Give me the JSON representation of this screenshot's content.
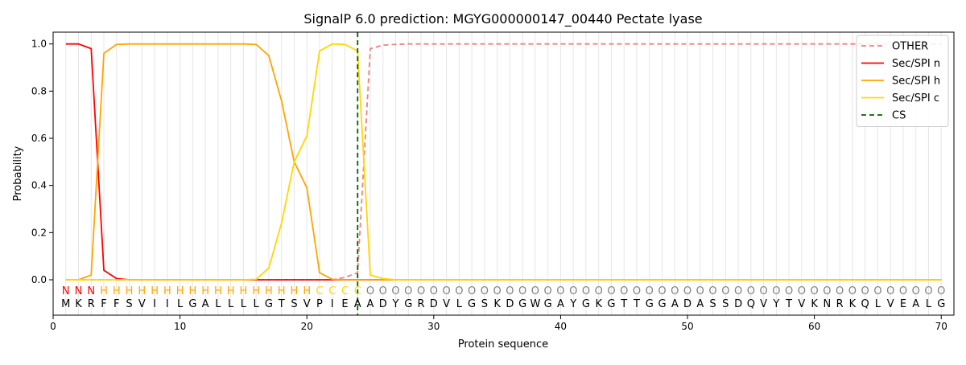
{
  "chart_data": {
    "type": "line",
    "title": "SignalP 6.0 prediction: MGYG000000147_00440 Pectate lyase",
    "xlabel": "Protein sequence",
    "ylabel": "Probability",
    "xlim": [
      0,
      71
    ],
    "ylim": [
      -0.15,
      1.05
    ],
    "x_ticks": [
      0,
      10,
      20,
      30,
      40,
      50,
      60,
      70
    ],
    "y_ticks": [
      0.0,
      0.2,
      0.4,
      0.6,
      0.8,
      1.0
    ],
    "y_tick_labels": [
      "0.0",
      "0.2",
      "0.4",
      "0.6",
      "0.8",
      "1.0"
    ],
    "grid": "vertical lines at each residue",
    "legend_position": "top-right",
    "sequence": [
      "M",
      "K",
      "R",
      "F",
      "F",
      "S",
      "V",
      "I",
      "I",
      "L",
      "G",
      "A",
      "L",
      "L",
      "L",
      "L",
      "G",
      "T",
      "S",
      "V",
      "P",
      "I",
      "E",
      "A",
      "A",
      "D",
      "Y",
      "G",
      "R",
      "D",
      "V",
      "L",
      "G",
      "S",
      "K",
      "D",
      "G",
      "W",
      "G",
      "A",
      "Y",
      "G",
      "K",
      "G",
      "T",
      "T",
      "G",
      "G",
      "A",
      "D",
      "A",
      "S",
      "S",
      "D",
      "Q",
      "V",
      "Y",
      "T",
      "V",
      "K",
      "N",
      "R",
      "K",
      "Q",
      "L",
      "V",
      "E",
      "A",
      "L",
      "G"
    ],
    "labels": [
      "N",
      "N",
      "N",
      "H",
      "H",
      "H",
      "H",
      "H",
      "H",
      "H",
      "H",
      "H",
      "H",
      "H",
      "H",
      "H",
      "H",
      "H",
      "H",
      "H",
      "C",
      "C",
      "C",
      "C",
      "O",
      "O",
      "O",
      "O",
      "O",
      "O",
      "O",
      "O",
      "O",
      "O",
      "O",
      "O",
      "O",
      "O",
      "O",
      "O",
      "O",
      "O",
      "O",
      "O",
      "O",
      "O",
      "O",
      "O",
      "O",
      "O",
      "O",
      "O",
      "O",
      "O",
      "O",
      "O",
      "O",
      "O",
      "O",
      "O",
      "O",
      "O",
      "O",
      "O",
      "O",
      "O",
      "O",
      "O",
      "O",
      "O"
    ],
    "label_colors": {
      "N": "#ff0000",
      "H": "#ffa500",
      "C": "#ffd700",
      "O": "#808080"
    },
    "cs_position": 24,
    "series": [
      {
        "name": "OTHER",
        "color": "#f08080",
        "dash": "dashed",
        "values": [
          0,
          0,
          0,
          0,
          0,
          0,
          0,
          0,
          0,
          0,
          0,
          0,
          0,
          0,
          0,
          0,
          0,
          0,
          0,
          0,
          0,
          0,
          0.01,
          0.03,
          0.98,
          0.995,
          0.998,
          1,
          1,
          1,
          1,
          1,
          1,
          1,
          1,
          1,
          1,
          1,
          1,
          1,
          1,
          1,
          1,
          1,
          1,
          1,
          1,
          1,
          1,
          1,
          1,
          1,
          1,
          1,
          1,
          1,
          1,
          1,
          1,
          1,
          1,
          1,
          1,
          1,
          1,
          1,
          1,
          1,
          1,
          1
        ]
      },
      {
        "name": "Sec/SPI n",
        "color": "#ff0000",
        "dash": "solid",
        "values": [
          1,
          1,
          0.98,
          0.04,
          0.005,
          0,
          0,
          0,
          0,
          0,
          0,
          0,
          0,
          0,
          0,
          0,
          0,
          0,
          0,
          0,
          0,
          0,
          0,
          0,
          0,
          0,
          0,
          0,
          0,
          0,
          0,
          0,
          0,
          0,
          0,
          0,
          0,
          0,
          0,
          0,
          0,
          0,
          0,
          0,
          0,
          0,
          0,
          0,
          0,
          0,
          0,
          0,
          0,
          0,
          0,
          0,
          0,
          0,
          0,
          0,
          0,
          0,
          0,
          0,
          0,
          0,
          0,
          0,
          0,
          0
        ]
      },
      {
        "name": "Sec/SPI h",
        "color": "#ffa500",
        "dash": "solid",
        "values": [
          0,
          0,
          0.02,
          0.96,
          0.998,
          1,
          1,
          1,
          1,
          1,
          1,
          1,
          1,
          1,
          1,
          0.998,
          0.95,
          0.76,
          0.5,
          0.39,
          0.03,
          0.002,
          0,
          0,
          0,
          0,
          0,
          0,
          0,
          0,
          0,
          0,
          0,
          0,
          0,
          0,
          0,
          0,
          0,
          0,
          0,
          0,
          0,
          0,
          0,
          0,
          0,
          0,
          0,
          0,
          0,
          0,
          0,
          0,
          0,
          0,
          0,
          0,
          0,
          0,
          0,
          0,
          0,
          0,
          0,
          0,
          0,
          0,
          0,
          0
        ]
      },
      {
        "name": "Sec/SPI c",
        "color": "#ffd700",
        "dash": "solid",
        "values": [
          0,
          0,
          0,
          0,
          0,
          0,
          0,
          0,
          0,
          0,
          0,
          0,
          0,
          0,
          0,
          0.002,
          0.05,
          0.24,
          0.5,
          0.61,
          0.97,
          1,
          0.998,
          0.97,
          0.02,
          0.005,
          0,
          0,
          0,
          0,
          0,
          0,
          0,
          0,
          0,
          0,
          0,
          0,
          0,
          0,
          0,
          0,
          0,
          0,
          0,
          0,
          0,
          0,
          0,
          0,
          0,
          0,
          0,
          0,
          0,
          0,
          0,
          0,
          0,
          0,
          0,
          0,
          0,
          0,
          0,
          0,
          0,
          0,
          0,
          0
        ]
      },
      {
        "name": "CS",
        "color": "#006400",
        "dash": "dashed",
        "type": "vline",
        "x": 24
      }
    ]
  }
}
